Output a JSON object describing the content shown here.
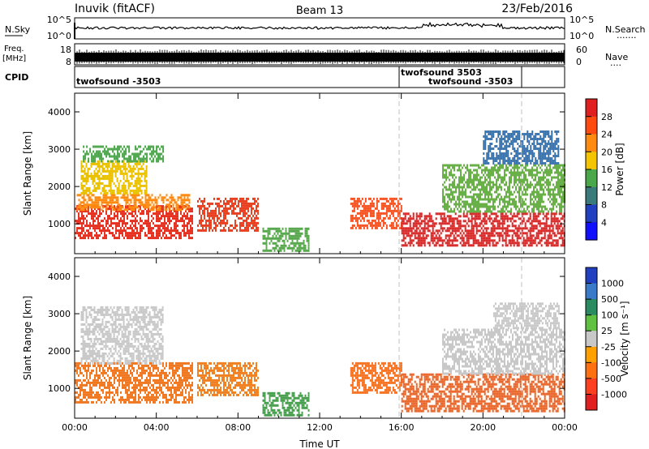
{
  "header": {
    "station": "Inuvik (fitACF)",
    "beam": "Beam 13",
    "date": "23/Feb/2016"
  },
  "top_panels": {
    "nsky": {
      "label": "N.Sky",
      "ticks_left": [
        "10^5",
        "10^0"
      ],
      "ticks_right": [
        "10^5",
        "10^0"
      ],
      "right_label": "N.Search",
      "right_dots": "·······"
    },
    "freq": {
      "label_line1": "Freq.",
      "label_line2": "[MHz]",
      "ticks_left": [
        "18",
        "8"
      ],
      "ticks_right": [
        "60",
        "0"
      ],
      "right_label": "Nave",
      "right_dots": "····"
    },
    "cpid": {
      "label": "CPID",
      "programs": [
        {
          "text": "twofsound -3503"
        },
        {
          "text": "twofsound 3503"
        },
        {
          "text": "twofsound -3503"
        }
      ]
    }
  },
  "chart_data": [
    {
      "type": "heatmap",
      "name": "power",
      "ylabel": "Slant Range [km]",
      "yticks": [
        1000,
        2000,
        3000,
        4000
      ],
      "ylim": [
        200,
        4500
      ],
      "xticks": [
        "00:00",
        "04:00",
        "08:00",
        "12:00",
        "16:00",
        "20:00",
        "00:00"
      ],
      "xlim_hours": [
        0,
        24
      ],
      "colorbar": {
        "label": "Power [dB]",
        "ticks": [
          "28",
          "24",
          "20",
          "16",
          "12",
          "8",
          "4"
        ],
        "colors": [
          "#e02020",
          "#ff4a10",
          "#ff8a10",
          "#f5c400",
          "#4aa84a",
          "#3a7a7a",
          "#2040c0",
          "#1010ff"
        ]
      },
      "regions": [
        {
          "t0": 0.0,
          "t1": 5.8,
          "r0": 600,
          "r1": 1500,
          "color": "#e63020",
          "level": 26
        },
        {
          "t0": 0.1,
          "t1": 5.6,
          "r0": 1400,
          "r1": 1800,
          "color": "#ff8a10",
          "level": 20
        },
        {
          "t0": 0.3,
          "t1": 3.5,
          "r0": 1800,
          "r1": 2700,
          "color": "#e8c000",
          "level": 17
        },
        {
          "t0": 0.4,
          "t1": 4.3,
          "r0": 2700,
          "r1": 3100,
          "color": "#4aa84a",
          "level": 12
        },
        {
          "t0": 6.0,
          "t1": 9.0,
          "r0": 800,
          "r1": 1700,
          "color": "#e84020",
          "level": 24
        },
        {
          "t0": 9.2,
          "t1": 11.5,
          "r0": 300,
          "r1": 900,
          "color": "#5aa850",
          "level": 12
        },
        {
          "t0": 13.5,
          "t1": 16.0,
          "r0": 900,
          "r1": 1700,
          "color": "#f05020",
          "level": 22
        },
        {
          "t0": 16.0,
          "t1": 24.0,
          "r0": 400,
          "r1": 1300,
          "color": "#e02020",
          "level": 28
        },
        {
          "t0": 18.0,
          "t1": 24.0,
          "r0": 1300,
          "r1": 2600,
          "color": "#6ab048",
          "level": 13
        },
        {
          "t0": 20.0,
          "t1": 23.7,
          "r0": 2600,
          "r1": 3500,
          "color": "#3a70a8",
          "level": 9
        }
      ]
    },
    {
      "type": "heatmap",
      "name": "velocity",
      "ylabel": "Slant Range [km]",
      "yticks": [
        1000,
        2000,
        3000,
        4000
      ],
      "ylim": [
        200,
        4500
      ],
      "xticks": [
        "00:00",
        "04:00",
        "08:00",
        "12:00",
        "16:00",
        "20:00",
        "00:00"
      ],
      "xlabel": "Time UT",
      "xlim_hours": [
        0,
        24
      ],
      "colorbar": {
        "label": "Velocity [m s⁻¹]",
        "ticks": [
          "1000",
          "500",
          "100",
          "25",
          "-25",
          "-100",
          "-500",
          "-1000"
        ],
        "colors": [
          "#2040c0",
          "#3a7ac8",
          "#2a8a60",
          "#60c040",
          "#c8c8c8",
          "#ffa000",
          "#ff7010",
          "#ff4020",
          "#e02020"
        ]
      },
      "regions": [
        {
          "t0": 0.0,
          "t1": 5.8,
          "r0": 600,
          "r1": 1700,
          "color": "#f07820",
          "level": -300
        },
        {
          "t0": 0.3,
          "t1": 4.3,
          "r0": 1700,
          "r1": 3200,
          "color": "#c8c8c8",
          "level": 0
        },
        {
          "t0": 6.0,
          "t1": 9.0,
          "r0": 800,
          "r1": 1700,
          "color": "#f08020",
          "level": -200
        },
        {
          "t0": 9.2,
          "t1": 11.5,
          "r0": 300,
          "r1": 900,
          "color": "#4aa050",
          "level": 120
        },
        {
          "t0": 13.5,
          "t1": 16.0,
          "r0": 900,
          "r1": 1700,
          "color": "#f07020",
          "level": -300
        },
        {
          "t0": 16.0,
          "t1": 24.0,
          "r0": 400,
          "r1": 1400,
          "color": "#f06020",
          "level": -400
        },
        {
          "t0": 18.0,
          "t1": 24.0,
          "r0": 1400,
          "r1": 2600,
          "color": "#c8c8c8",
          "level": 0
        },
        {
          "t0": 20.5,
          "t1": 23.7,
          "r0": 2600,
          "r1": 3300,
          "color": "#c8c8c8",
          "level": 0
        }
      ]
    }
  ]
}
